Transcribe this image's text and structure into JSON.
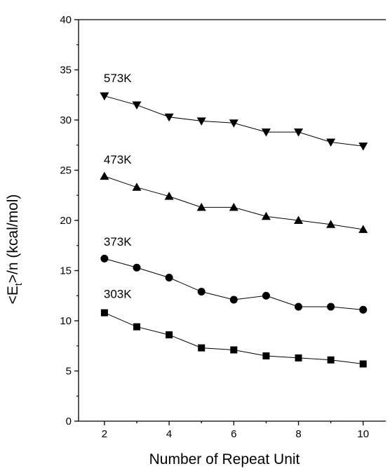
{
  "chart_data": {
    "type": "line",
    "title": "",
    "xlabel": "Number of Repeat Unit",
    "ylabel_main": "<E",
    "ylabel_sub": "t",
    "ylabel_rest": ">/n (kcal/mol)",
    "xlim": [
      1.2,
      10.7
    ],
    "ylim": [
      0,
      40
    ],
    "x_ticks": [
      2,
      4,
      6,
      8,
      10
    ],
    "y_ticks": [
      0,
      5,
      10,
      15,
      20,
      25,
      30,
      35,
      40
    ],
    "grid": false,
    "legend": "none",
    "x": [
      2,
      3,
      4,
      5,
      6,
      7,
      8,
      9,
      10
    ],
    "series": [
      {
        "name": "303K",
        "marker": "square",
        "label_x": 2,
        "label_y": 12.7,
        "values": [
          10.8,
          9.4,
          8.6,
          7.3,
          7.1,
          6.5,
          6.3,
          6.1,
          5.7
        ]
      },
      {
        "name": "373K",
        "marker": "circle",
        "label_x": 2,
        "label_y": 17.9,
        "values": [
          16.2,
          15.3,
          14.3,
          12.9,
          12.1,
          12.5,
          11.4,
          11.4,
          11.1
        ]
      },
      {
        "name": "473K",
        "marker": "triangle-up",
        "label_x": 2,
        "label_y": 26.1,
        "values": [
          24.4,
          23.3,
          22.4,
          21.3,
          21.3,
          20.4,
          20.0,
          19.6,
          19.1
        ]
      },
      {
        "name": "573K",
        "marker": "triangle-down",
        "label_x": 2,
        "label_y": 34.2,
        "values": [
          32.4,
          31.5,
          30.3,
          29.9,
          29.7,
          28.8,
          28.8,
          27.8,
          27.4
        ]
      }
    ],
    "colors": {
      "line": "#000000",
      "marker": "#000000"
    }
  }
}
